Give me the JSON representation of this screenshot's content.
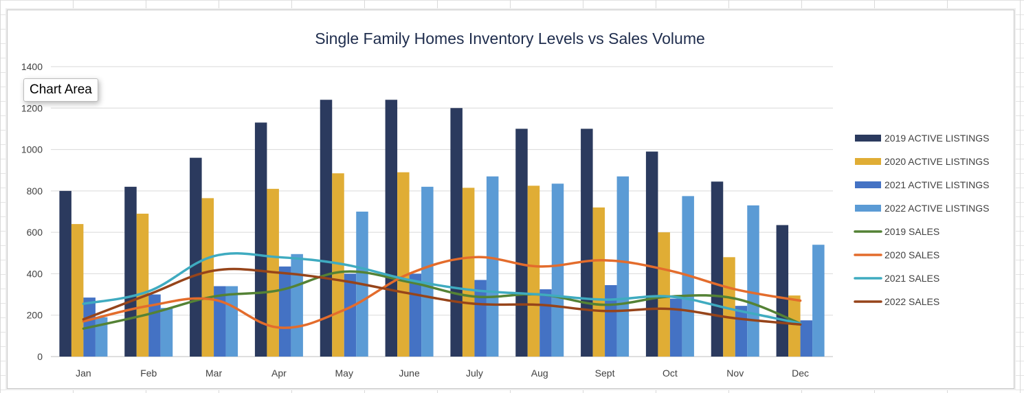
{
  "tooltip": {
    "label": "Chart Area"
  },
  "chart_data": {
    "type": "bar",
    "title": "Single Family Homes Inventory Levels vs Sales Volume",
    "xlabel": "",
    "ylabel": "",
    "ylim": [
      0,
      1400
    ],
    "yticks": [
      0,
      200,
      400,
      600,
      800,
      1000,
      1200,
      1400
    ],
    "grid": true,
    "legend_position": "right",
    "categories": [
      "Jan",
      "Feb",
      "Mar",
      "Apr",
      "May",
      "June",
      "July",
      "Aug",
      "Sept",
      "Oct",
      "Nov",
      "Dec"
    ],
    "series": [
      {
        "name": "2019  ACTIVE LISTINGS",
        "kind": "bar",
        "color": "#2b3a5e",
        "values": [
          800,
          820,
          960,
          1130,
          1240,
          1240,
          1200,
          1100,
          1100,
          990,
          845,
          635
        ]
      },
      {
        "name": "2020 ACTIVE LISTINGS",
        "kind": "bar",
        "color": "#e0ad35",
        "values": [
          640,
          690,
          765,
          810,
          885,
          890,
          815,
          825,
          720,
          600,
          480,
          295
        ]
      },
      {
        "name": "2021 ACTIVE LISTINGS",
        "kind": "bar",
        "color": "#4472c4",
        "values": [
          285,
          300,
          340,
          435,
          400,
          400,
          370,
          325,
          345,
          280,
          245,
          175
        ]
      },
      {
        "name": "2022 ACTIVE LISTINGS",
        "kind": "bar",
        "color": "#5b9bd5",
        "values": [
          190,
          235,
          340,
          495,
          700,
          820,
          870,
          835,
          870,
          775,
          730,
          540
        ]
      },
      {
        "name": "2019 SALES",
        "kind": "line",
        "color": "#548235",
        "values": [
          135,
          205,
          290,
          320,
          410,
          360,
          290,
          300,
          250,
          290,
          280,
          160
        ]
      },
      {
        "name": "2020 SALES",
        "kind": "line",
        "color": "#e36c2c",
        "values": [
          170,
          245,
          275,
          140,
          225,
          400,
          480,
          435,
          465,
          415,
          325,
          270
        ]
      },
      {
        "name": "2021 SALES",
        "kind": "line",
        "color": "#3fabc0",
        "values": [
          255,
          315,
          485,
          480,
          445,
          370,
          320,
          300,
          275,
          290,
          225,
          160
        ]
      },
      {
        "name": "2022 SALES",
        "kind": "line",
        "color": "#96441a",
        "values": [
          180,
          300,
          415,
          405,
          365,
          305,
          255,
          250,
          220,
          230,
          185,
          155
        ]
      }
    ]
  }
}
